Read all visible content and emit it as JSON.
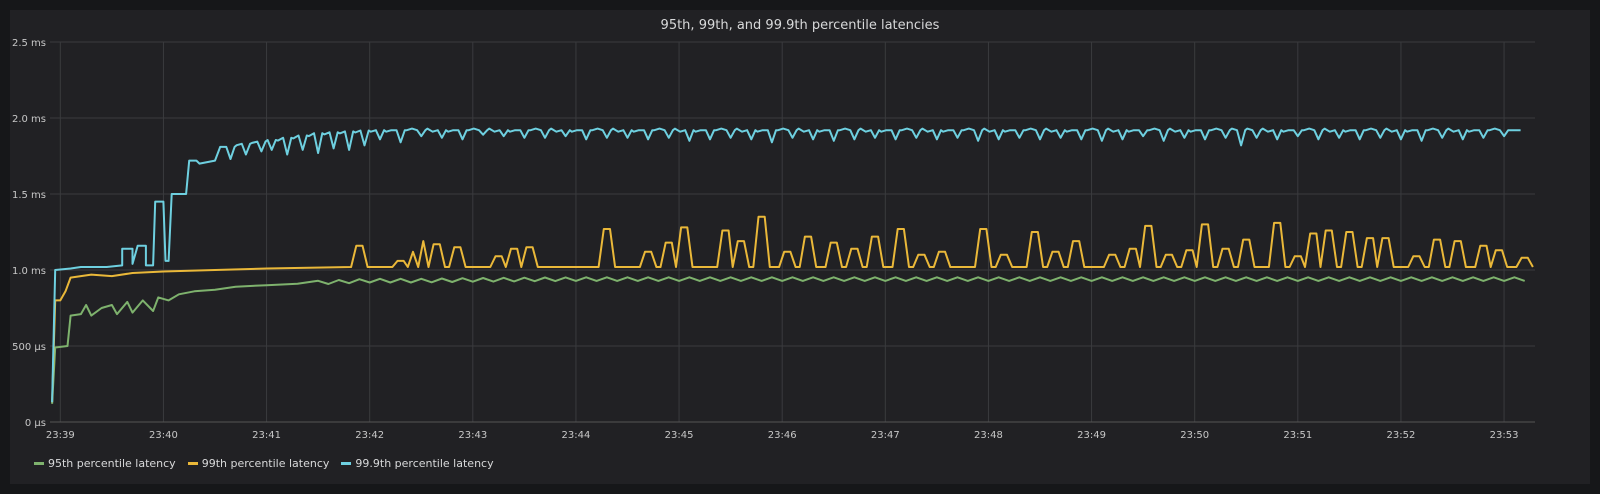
{
  "panel": {
    "title": "95th, 99th, and 99.9th percentile latencies"
  },
  "chart_data": {
    "type": "line",
    "title": "95th, 99th, and 99.9th percentile latencies",
    "xlabel": "",
    "ylabel": "",
    "x_ticks": [
      "23:39",
      "23:40",
      "23:41",
      "23:42",
      "23:43",
      "23:44",
      "23:45",
      "23:46",
      "23:47",
      "23:48",
      "23:49",
      "23:50",
      "23:51",
      "23:52",
      "23:53"
    ],
    "y_ticks": [
      "0 µs",
      "500 µs",
      "1.0 ms",
      "1.5 ms",
      "2.0 ms",
      "2.5 ms"
    ],
    "ylim_ms": [
      0,
      2.5
    ],
    "x_unit": "minutes after 23:39",
    "grid": true,
    "legend_position": "bottom-left",
    "series": [
      {
        "name": "95th percentile latency",
        "color": "#7eb26d",
        "points": [
          [
            -0.08,
            0.12
          ],
          [
            -0.05,
            0.49
          ],
          [
            0.07,
            0.5
          ],
          [
            0.1,
            0.7
          ],
          [
            0.2,
            0.71
          ],
          [
            0.25,
            0.77
          ],
          [
            0.3,
            0.7
          ],
          [
            0.4,
            0.75
          ],
          [
            0.5,
            0.77
          ],
          [
            0.55,
            0.71
          ],
          [
            0.65,
            0.79
          ],
          [
            0.7,
            0.72
          ],
          [
            0.8,
            0.8
          ],
          [
            0.9,
            0.73
          ],
          [
            0.95,
            0.82
          ],
          [
            1.05,
            0.8
          ],
          [
            1.15,
            0.84
          ],
          [
            1.3,
            0.86
          ],
          [
            1.5,
            0.87
          ],
          [
            1.7,
            0.89
          ],
          [
            2.0,
            0.9
          ],
          [
            2.3,
            0.91
          ],
          [
            2.6,
            0.92
          ],
          [
            3.0,
            0.93
          ],
          [
            3.5,
            0.93
          ],
          [
            4.0,
            0.935
          ],
          [
            5.0,
            0.94
          ],
          [
            6.0,
            0.94
          ],
          [
            7.0,
            0.94
          ],
          [
            8.0,
            0.94
          ],
          [
            9.0,
            0.94
          ],
          [
            10.0,
            0.94
          ],
          [
            11.0,
            0.94
          ],
          [
            12.0,
            0.94
          ],
          [
            13.0,
            0.94
          ],
          [
            14.2,
            0.94
          ]
        ],
        "ripple_from": 2.5,
        "ripple_amp": 0.012
      },
      {
        "name": "99th percentile latency",
        "color": "#eab839",
        "base": 1.02,
        "points": [
          [
            -0.08,
            0.13
          ],
          [
            -0.05,
            0.8
          ],
          [
            0.0,
            0.8
          ],
          [
            0.05,
            0.86
          ],
          [
            0.1,
            0.95
          ],
          [
            0.2,
            0.96
          ],
          [
            0.3,
            0.97
          ],
          [
            0.5,
            0.96
          ],
          [
            0.7,
            0.98
          ],
          [
            1.0,
            0.99
          ],
          [
            1.5,
            1.0
          ],
          [
            2.0,
            1.01
          ],
          [
            3.0,
            1.02
          ],
          [
            14.2,
            1.02
          ]
        ],
        "spikes": [
          [
            2.9,
            1.16
          ],
          [
            3.3,
            1.06
          ],
          [
            3.45,
            1.12
          ],
          [
            3.55,
            1.19
          ],
          [
            3.65,
            1.17
          ],
          [
            3.85,
            1.15
          ],
          [
            4.25,
            1.09
          ],
          [
            4.4,
            1.14
          ],
          [
            4.55,
            1.15
          ],
          [
            5.3,
            1.27
          ],
          [
            5.7,
            1.12
          ],
          [
            5.9,
            1.18
          ],
          [
            6.05,
            1.28
          ],
          [
            6.45,
            1.26
          ],
          [
            6.6,
            1.19
          ],
          [
            6.8,
            1.35
          ],
          [
            7.05,
            1.12
          ],
          [
            7.25,
            1.22
          ],
          [
            7.5,
            1.18
          ],
          [
            7.7,
            1.14
          ],
          [
            7.9,
            1.22
          ],
          [
            8.15,
            1.27
          ],
          [
            8.35,
            1.1
          ],
          [
            8.55,
            1.12
          ],
          [
            8.95,
            1.27
          ],
          [
            9.15,
            1.1
          ],
          [
            9.45,
            1.25
          ],
          [
            9.65,
            1.12
          ],
          [
            9.85,
            1.19
          ],
          [
            10.2,
            1.1
          ],
          [
            10.4,
            1.14
          ],
          [
            10.55,
            1.29
          ],
          [
            10.75,
            1.1
          ],
          [
            10.95,
            1.13
          ],
          [
            11.1,
            1.3
          ],
          [
            11.3,
            1.14
          ],
          [
            11.5,
            1.2
          ],
          [
            11.8,
            1.31
          ],
          [
            12.0,
            1.09
          ],
          [
            12.15,
            1.24
          ],
          [
            12.3,
            1.26
          ],
          [
            12.5,
            1.25
          ],
          [
            12.7,
            1.21
          ],
          [
            12.85,
            1.21
          ],
          [
            13.15,
            1.09
          ],
          [
            13.35,
            1.2
          ],
          [
            13.55,
            1.19
          ],
          [
            13.8,
            1.16
          ],
          [
            13.95,
            1.13
          ],
          [
            14.2,
            1.08
          ]
        ]
      },
      {
        "name": "99.9th percentile latency",
        "color": "#6ed0e0",
        "points": [
          [
            -0.08,
            0.13
          ],
          [
            -0.05,
            1.0
          ],
          [
            0.1,
            1.01
          ],
          [
            0.2,
            1.02
          ],
          [
            0.35,
            1.02
          ],
          [
            0.45,
            1.02
          ],
          [
            0.6,
            1.03
          ],
          [
            0.6,
            1.14
          ],
          [
            0.7,
            1.14
          ],
          [
            0.7,
            1.04
          ],
          [
            0.75,
            1.16
          ],
          [
            0.83,
            1.16
          ],
          [
            0.83,
            1.03
          ],
          [
            0.9,
            1.03
          ],
          [
            0.92,
            1.45
          ],
          [
            1.0,
            1.45
          ],
          [
            1.02,
            1.06
          ],
          [
            1.05,
            1.06
          ],
          [
            1.08,
            1.5
          ],
          [
            1.22,
            1.5
          ],
          [
            1.25,
            1.72
          ],
          [
            1.32,
            1.72
          ],
          [
            1.35,
            1.7
          ],
          [
            1.5,
            1.72
          ],
          [
            1.55,
            1.81
          ],
          [
            1.6,
            1.8
          ],
          [
            1.7,
            1.82
          ],
          [
            2.0,
            1.85
          ],
          [
            2.5,
            1.9
          ],
          [
            3.0,
            1.92
          ],
          [
            14.2,
            1.92
          ]
        ],
        "dips": [
          [
            1.65,
            1.73
          ],
          [
            1.8,
            1.76
          ],
          [
            1.95,
            1.78
          ],
          [
            2.05,
            1.79
          ],
          [
            2.2,
            1.76
          ],
          [
            2.35,
            1.79
          ],
          [
            2.5,
            1.77
          ],
          [
            2.65,
            1.8
          ],
          [
            2.8,
            1.79
          ],
          [
            2.95,
            1.82
          ],
          [
            3.1,
            1.86
          ],
          [
            3.3,
            1.84
          ],
          [
            3.5,
            1.88
          ],
          [
            3.7,
            1.87
          ],
          [
            3.9,
            1.86
          ],
          [
            4.1,
            1.89
          ],
          [
            4.3,
            1.88
          ],
          [
            4.5,
            1.87
          ],
          [
            4.7,
            1.87
          ],
          [
            4.9,
            1.88
          ],
          [
            5.1,
            1.86
          ],
          [
            5.3,
            1.87
          ],
          [
            5.5,
            1.87
          ],
          [
            5.7,
            1.86
          ],
          [
            5.9,
            1.87
          ],
          [
            6.1,
            1.85
          ],
          [
            6.3,
            1.86
          ],
          [
            6.5,
            1.87
          ],
          [
            6.7,
            1.86
          ],
          [
            6.9,
            1.84
          ],
          [
            7.1,
            1.87
          ],
          [
            7.3,
            1.86
          ],
          [
            7.5,
            1.85
          ],
          [
            7.7,
            1.86
          ],
          [
            7.9,
            1.87
          ],
          [
            8.1,
            1.86
          ],
          [
            8.3,
            1.87
          ],
          [
            8.5,
            1.86
          ],
          [
            8.7,
            1.87
          ],
          [
            8.9,
            1.85
          ],
          [
            9.1,
            1.86
          ],
          [
            9.3,
            1.87
          ],
          [
            9.5,
            1.86
          ],
          [
            9.7,
            1.87
          ],
          [
            9.9,
            1.86
          ],
          [
            10.1,
            1.85
          ],
          [
            10.3,
            1.86
          ],
          [
            10.5,
            1.88
          ],
          [
            10.7,
            1.85
          ],
          [
            10.9,
            1.87
          ],
          [
            11.1,
            1.86
          ],
          [
            11.3,
            1.87
          ],
          [
            11.45,
            1.82
          ],
          [
            11.6,
            1.87
          ],
          [
            11.8,
            1.86
          ],
          [
            12.0,
            1.88
          ],
          [
            12.2,
            1.86
          ],
          [
            12.4,
            1.87
          ],
          [
            12.6,
            1.86
          ],
          [
            12.8,
            1.87
          ],
          [
            13.0,
            1.86
          ],
          [
            13.2,
            1.85
          ],
          [
            13.4,
            1.87
          ],
          [
            13.6,
            1.86
          ],
          [
            13.8,
            1.87
          ],
          [
            14.0,
            1.88
          ]
        ]
      }
    ]
  }
}
